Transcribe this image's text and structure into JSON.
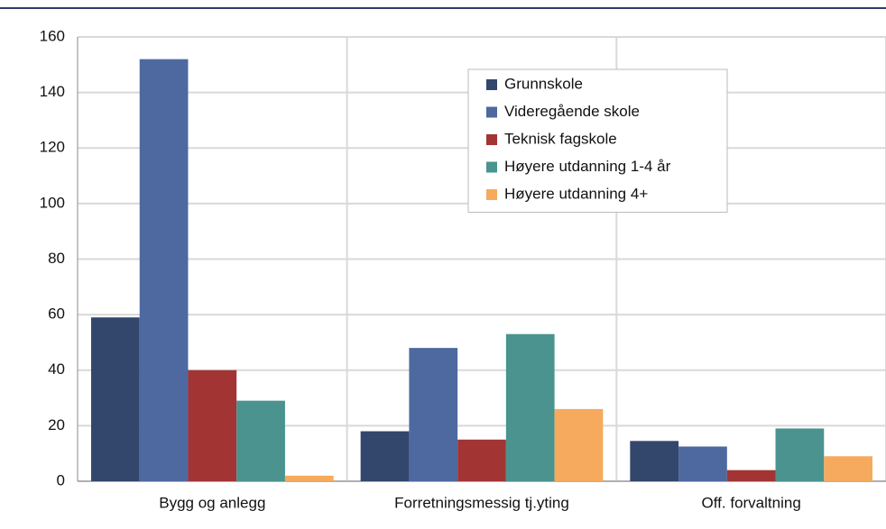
{
  "chart_data": {
    "type": "bar",
    "categories": [
      "Bygg og anlegg",
      "Forretningsmessig tj.yting",
      "Off. forvaltning"
    ],
    "series": [
      {
        "name": "Grunnskole",
        "color": "#33466b",
        "values": [
          59,
          18,
          14.5
        ]
      },
      {
        "name": "Videregående skole",
        "color": "#4e69a0",
        "values": [
          152,
          48,
          12.5
        ]
      },
      {
        "name": "Teknisk fagskole",
        "color": "#a33434",
        "values": [
          40,
          15,
          4
        ]
      },
      {
        "name": "Høyere utdanning 1-4 år",
        "color": "#4a938f",
        "values": [
          29,
          53,
          19
        ]
      },
      {
        "name": "Høyere utdanning 4+",
        "color": "#f5aa5d",
        "values": [
          2,
          26,
          9
        ]
      }
    ],
    "ylim": [
      0,
      160
    ],
    "yticks": [
      0,
      20,
      40,
      60,
      80,
      100,
      120,
      140,
      160
    ],
    "grid": true,
    "legend_position": "top right"
  }
}
